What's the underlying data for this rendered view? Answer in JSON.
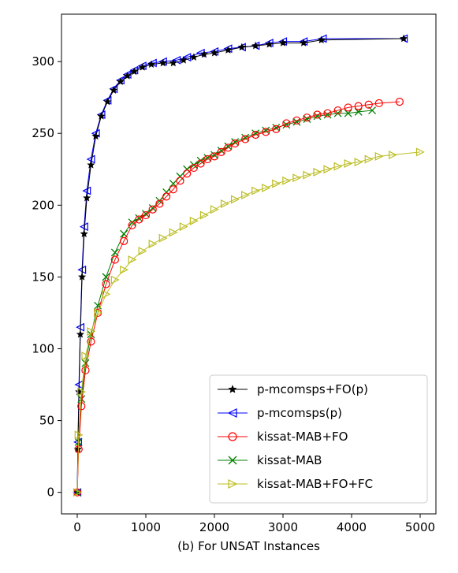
{
  "chart_data": {
    "type": "line",
    "title": "",
    "xlabel": "(b) For UNSAT Instances",
    "ylabel": "",
    "xlim": [
      -230,
      5230
    ],
    "ylim": [
      -15,
      333
    ],
    "xticks": [
      0,
      1000,
      2000,
      3000,
      4000,
      5000
    ],
    "yticks": [
      0,
      50,
      100,
      150,
      200,
      250,
      300
    ],
    "grid": false,
    "legend_position": "lower-right",
    "series": [
      {
        "name": "p-mcomsps+FO(p)",
        "color": "#000000",
        "marker": "star",
        "points": [
          [
            0,
            0
          ],
          [
            10,
            30
          ],
          [
            25,
            70
          ],
          [
            45,
            110
          ],
          [
            70,
            150
          ],
          [
            100,
            180
          ],
          [
            140,
            205
          ],
          [
            200,
            228
          ],
          [
            270,
            248
          ],
          [
            350,
            262
          ],
          [
            440,
            272
          ],
          [
            530,
            280
          ],
          [
            630,
            286
          ],
          [
            730,
            290
          ],
          [
            830,
            293
          ],
          [
            950,
            296
          ],
          [
            1080,
            298
          ],
          [
            1250,
            299
          ],
          [
            1400,
            299
          ],
          [
            1550,
            301
          ],
          [
            1700,
            303
          ],
          [
            1850,
            305
          ],
          [
            2000,
            306
          ],
          [
            2200,
            308
          ],
          [
            2400,
            310
          ],
          [
            2600,
            311
          ],
          [
            2800,
            312
          ],
          [
            3000,
            313
          ],
          [
            3300,
            313
          ],
          [
            3560,
            315
          ],
          [
            4760,
            316
          ]
        ]
      },
      {
        "name": "p-mcomsps(p)",
        "color": "#0000ff",
        "marker": "triangle-left",
        "points": [
          [
            0,
            0
          ],
          [
            10,
            35
          ],
          [
            25,
            75
          ],
          [
            45,
            115
          ],
          [
            70,
            155
          ],
          [
            100,
            185
          ],
          [
            140,
            210
          ],
          [
            200,
            232
          ],
          [
            270,
            250
          ],
          [
            350,
            263
          ],
          [
            440,
            273
          ],
          [
            530,
            281
          ],
          [
            630,
            287
          ],
          [
            730,
            291
          ],
          [
            830,
            294
          ],
          [
            950,
            297
          ],
          [
            1100,
            299
          ],
          [
            1250,
            300
          ],
          [
            1450,
            301
          ],
          [
            1600,
            303
          ],
          [
            1800,
            306
          ],
          [
            2000,
            307
          ],
          [
            2200,
            309
          ],
          [
            2400,
            310
          ],
          [
            2600,
            311
          ],
          [
            2800,
            313
          ],
          [
            3000,
            314
          ],
          [
            3300,
            314
          ],
          [
            3580,
            316
          ],
          [
            4760,
            316
          ]
        ]
      },
      {
        "name": "kissat-MAB+FO",
        "color": "#ff0000",
        "marker": "circle",
        "points": [
          [
            0,
            0
          ],
          [
            20,
            30
          ],
          [
            60,
            60
          ],
          [
            120,
            85
          ],
          [
            200,
            105
          ],
          [
            300,
            125
          ],
          [
            420,
            145
          ],
          [
            550,
            162
          ],
          [
            680,
            175
          ],
          [
            800,
            186
          ],
          [
            900,
            190
          ],
          [
            1000,
            193
          ],
          [
            1100,
            197
          ],
          [
            1200,
            201
          ],
          [
            1300,
            206
          ],
          [
            1400,
            211
          ],
          [
            1500,
            217
          ],
          [
            1600,
            222
          ],
          [
            1700,
            226
          ],
          [
            1800,
            229
          ],
          [
            1900,
            232
          ],
          [
            2000,
            234
          ],
          [
            2100,
            237
          ],
          [
            2200,
            240
          ],
          [
            2300,
            243
          ],
          [
            2450,
            246
          ],
          [
            2600,
            249
          ],
          [
            2750,
            251
          ],
          [
            2900,
            253
          ],
          [
            3050,
            257
          ],
          [
            3200,
            259
          ],
          [
            3350,
            261
          ],
          [
            3500,
            263
          ],
          [
            3650,
            264
          ],
          [
            3800,
            266
          ],
          [
            3950,
            268
          ],
          [
            4100,
            269
          ],
          [
            4250,
            270
          ],
          [
            4400,
            271
          ],
          [
            4700,
            272
          ]
        ]
      },
      {
        "name": "kissat-MAB",
        "color": "#008000",
        "marker": "x",
        "points": [
          [
            0,
            0
          ],
          [
            20,
            35
          ],
          [
            60,
            65
          ],
          [
            120,
            90
          ],
          [
            200,
            110
          ],
          [
            300,
            130
          ],
          [
            420,
            150
          ],
          [
            550,
            167
          ],
          [
            680,
            180
          ],
          [
            800,
            188
          ],
          [
            900,
            191
          ],
          [
            1000,
            194
          ],
          [
            1100,
            198
          ],
          [
            1200,
            203
          ],
          [
            1300,
            209
          ],
          [
            1400,
            215
          ],
          [
            1500,
            220
          ],
          [
            1600,
            225
          ],
          [
            1700,
            228
          ],
          [
            1800,
            231
          ],
          [
            1900,
            233
          ],
          [
            2000,
            235
          ],
          [
            2100,
            238
          ],
          [
            2200,
            241
          ],
          [
            2300,
            244
          ],
          [
            2450,
            247
          ],
          [
            2600,
            250
          ],
          [
            2750,
            252
          ],
          [
            2900,
            254
          ],
          [
            3050,
            256
          ],
          [
            3200,
            258
          ],
          [
            3350,
            260
          ],
          [
            3500,
            262
          ],
          [
            3650,
            263
          ],
          [
            3800,
            264
          ],
          [
            3950,
            264
          ],
          [
            4100,
            265
          ],
          [
            4300,
            266
          ]
        ]
      },
      {
        "name": "kissat-MAB+FO+FC",
        "color": "#bcbd22",
        "marker": "triangle-right",
        "points": [
          [
            0,
            0
          ],
          [
            20,
            40
          ],
          [
            60,
            70
          ],
          [
            120,
            95
          ],
          [
            200,
            112
          ],
          [
            300,
            125
          ],
          [
            420,
            138
          ],
          [
            550,
            148
          ],
          [
            680,
            155
          ],
          [
            800,
            162
          ],
          [
            950,
            168
          ],
          [
            1100,
            173
          ],
          [
            1250,
            177
          ],
          [
            1400,
            181
          ],
          [
            1550,
            185
          ],
          [
            1700,
            189
          ],
          [
            1850,
            193
          ],
          [
            2000,
            197
          ],
          [
            2150,
            201
          ],
          [
            2300,
            204
          ],
          [
            2450,
            207
          ],
          [
            2600,
            210
          ],
          [
            2750,
            212
          ],
          [
            2900,
            215
          ],
          [
            3050,
            217
          ],
          [
            3200,
            219
          ],
          [
            3350,
            221
          ],
          [
            3500,
            223
          ],
          [
            3650,
            225
          ],
          [
            3800,
            227
          ],
          [
            3950,
            229
          ],
          [
            4100,
            230
          ],
          [
            4250,
            232
          ],
          [
            4400,
            234
          ],
          [
            4600,
            235
          ],
          [
            5000,
            237
          ]
        ]
      }
    ]
  }
}
